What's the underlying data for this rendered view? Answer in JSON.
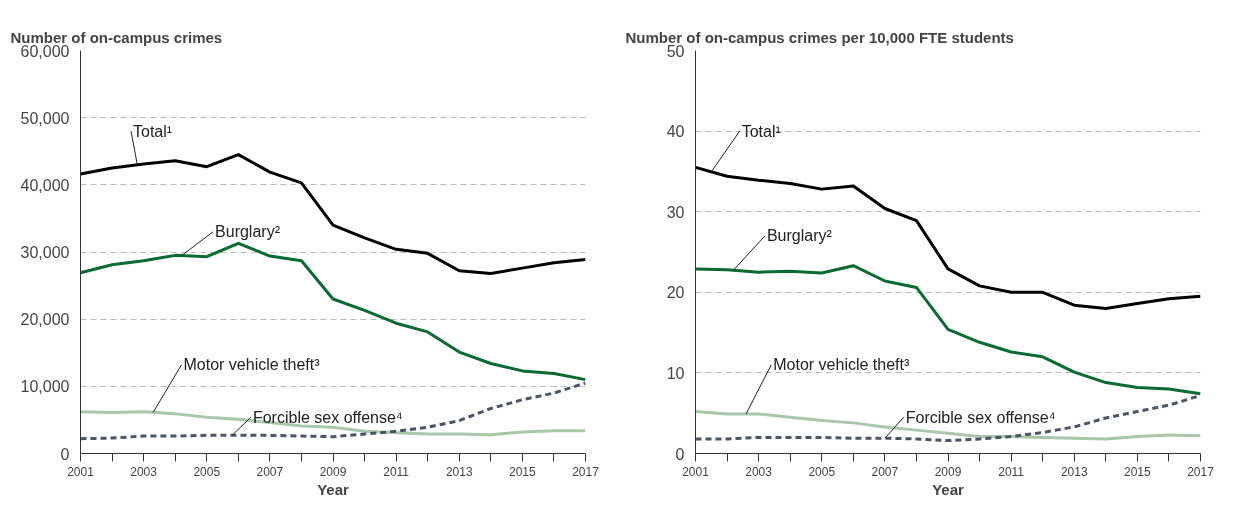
{
  "chart_data": [
    {
      "type": "line",
      "title": "Number of on-campus crimes",
      "xlabel": "Year",
      "x": [
        2001,
        2002,
        2003,
        2004,
        2005,
        2006,
        2007,
        2008,
        2009,
        2010,
        2011,
        2012,
        2013,
        2014,
        2015,
        2016,
        2017
      ],
      "xlim": [
        2001,
        2017
      ],
      "xticks": [
        2001,
        {
          "value": 2002,
          "label": null
        },
        2003,
        {
          "value": 2004,
          "label": null
        },
        2005,
        {
          "value": 2006,
          "label": null
        },
        2007,
        {
          "value": 2008,
          "label": null
        },
        2009,
        {
          "value": 2010,
          "label": null
        },
        2011,
        {
          "value": 2012,
          "label": null
        },
        2013,
        {
          "value": 2014,
          "label": null
        },
        2015,
        {
          "value": 2016,
          "label": null
        },
        2017
      ],
      "ylim": [
        0,
        60000
      ],
      "yticks": [
        0,
        {
          "value": 10000,
          "label": "10,000"
        },
        {
          "value": 20000,
          "label": "20,000"
        },
        {
          "value": 30000,
          "label": "30,000"
        },
        {
          "value": 40000,
          "label": "40,000"
        },
        {
          "value": 50000,
          "label": "50,000"
        },
        {
          "value": 60000,
          "label": "60,000"
        }
      ],
      "grid": "y",
      "series": [
        {
          "name": "Total¹",
          "color": "#000000",
          "line_style": "solid",
          "values": [
            41600,
            42500,
            43100,
            43600,
            42700,
            44500,
            41900,
            40300,
            34000,
            32100,
            30400,
            29800,
            27200,
            26800,
            27600,
            28400,
            28900
          ]
        },
        {
          "name": "Burglary²",
          "color": "#0a6b32",
          "line_style": "solid",
          "values": [
            26900,
            28100,
            28700,
            29500,
            29300,
            31300,
            29400,
            28700,
            23000,
            21300,
            19400,
            18100,
            15100,
            13400,
            12300,
            11900,
            11000
          ]
        },
        {
          "name": "Motor vehicle theft³",
          "color": "#a8c8a8",
          "line_style": "solid",
          "values": [
            6200,
            6100,
            6200,
            5900,
            5400,
            5100,
            4600,
            4100,
            3900,
            3300,
            3100,
            2900,
            2900,
            2800,
            3200,
            3400,
            3400
          ]
        },
        {
          "name": "Forcible sex offense⁴",
          "color": "#4a5568",
          "line_style": "dashed",
          "values": [
            2200,
            2300,
            2600,
            2600,
            2700,
            2700,
            2700,
            2600,
            2500,
            2900,
            3300,
            3900,
            4900,
            6700,
            8000,
            9000,
            10500
          ]
        }
      ]
    },
    {
      "type": "line",
      "title": "Number of on-campus crimes per 10,000 FTE students",
      "xlabel": "Year",
      "x": [
        2001,
        2002,
        2003,
        2004,
        2005,
        2006,
        2007,
        2008,
        2009,
        2010,
        2011,
        2012,
        2013,
        2014,
        2015,
        2016,
        2017
      ],
      "xlim": [
        2001,
        2017
      ],
      "xticks": [
        2001,
        {
          "value": 2002,
          "label": null
        },
        2003,
        {
          "value": 2004,
          "label": null
        },
        2005,
        {
          "value": 2006,
          "label": null
        },
        2007,
        {
          "value": 2008,
          "label": null
        },
        2009,
        {
          "value": 2010,
          "label": null
        },
        2011,
        {
          "value": 2012,
          "label": null
        },
        2013,
        {
          "value": 2014,
          "label": null
        },
        2015,
        {
          "value": 2016,
          "label": null
        },
        2017
      ],
      "ylim": [
        0,
        50
      ],
      "yticks": [
        0,
        10,
        20,
        30,
        40,
        50
      ],
      "grid": "y",
      "series": [
        {
          "name": "Total¹",
          "color": "#000000",
          "line_style": "solid",
          "values": [
            35.5,
            34.4,
            33.9,
            33.5,
            32.8,
            33.2,
            30.4,
            28.9,
            22.9,
            20.8,
            20.0,
            20.0,
            18.4,
            18.0,
            18.6,
            19.2,
            19.5
          ]
        },
        {
          "name": "Burglary²",
          "color": "#0a6b32",
          "line_style": "solid",
          "values": [
            22.9,
            22.8,
            22.5,
            22.6,
            22.4,
            23.3,
            21.4,
            20.6,
            15.4,
            13.8,
            12.6,
            12.0,
            10.1,
            8.8,
            8.2,
            8.0,
            7.4
          ]
        },
        {
          "name": "Motor vehicle theft³",
          "color": "#a8c8a8",
          "line_style": "solid",
          "values": [
            5.2,
            4.9,
            4.9,
            4.5,
            4.1,
            3.8,
            3.3,
            2.9,
            2.5,
            2.1,
            2.1,
            2.0,
            1.9,
            1.8,
            2.1,
            2.3,
            2.2
          ]
        },
        {
          "name": "Forcible sex offense⁴",
          "color": "#4a5568",
          "line_style": "dashed",
          "values": [
            1.8,
            1.8,
            2.0,
            2.0,
            2.0,
            1.9,
            1.9,
            1.8,
            1.6,
            1.8,
            2.1,
            2.6,
            3.3,
            4.4,
            5.2,
            6.0,
            7.2
          ]
        }
      ]
    }
  ]
}
